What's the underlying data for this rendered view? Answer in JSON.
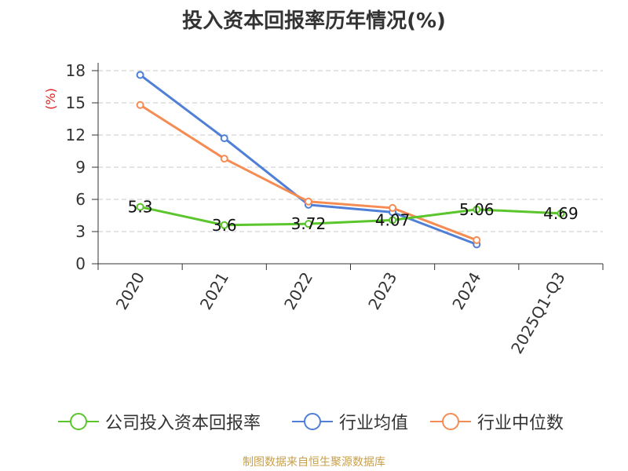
{
  "title": "投入资本回报率历年情况(%)",
  "source": "制图数据来自恒生聚源数据库",
  "chart_data": {
    "type": "line",
    "categories": [
      "2020",
      "2021",
      "2022",
      "2023",
      "2024",
      "2025Q1-Q3"
    ],
    "ylabel": "(%)",
    "xlabel": "",
    "ylim": [
      0,
      18
    ],
    "yticks": [
      0,
      3,
      6,
      9,
      12,
      15,
      18
    ],
    "grid": true,
    "legend_position": "bottom",
    "series": [
      {
        "name": "公司投入资本回报率",
        "color": "#5bc52c",
        "values": [
          5.3,
          3.6,
          3.72,
          4.07,
          5.06,
          4.69
        ],
        "labels": [
          "5.3",
          "3.6",
          "3.72",
          "4.07",
          "5.06",
          "4.69"
        ]
      },
      {
        "name": "行业均值",
        "color": "#4f7fd6",
        "values": [
          17.6,
          11.7,
          5.5,
          4.8,
          1.8,
          null
        ]
      },
      {
        "name": "行业中位数",
        "color": "#f58c54",
        "values": [
          14.8,
          9.8,
          5.8,
          5.2,
          2.2,
          null
        ]
      }
    ]
  },
  "colors": {
    "ylabel": "#e02020",
    "grid": "#c8c8c8",
    "axis": "#333333",
    "source": "#c8a04a"
  }
}
